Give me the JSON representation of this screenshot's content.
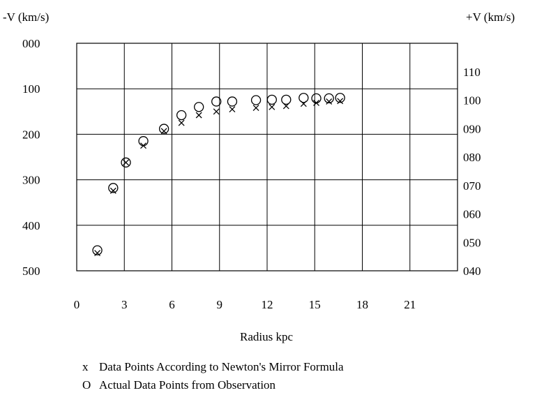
{
  "chart_data": {
    "type": "scatter",
    "left_axis_label": "-V   (km/s)",
    "right_axis_label": "+V (km/s)",
    "xlabel": "Radius  kpc",
    "x_ticks": [
      "0",
      "3",
      "6",
      "9",
      "12",
      "15",
      "18",
      "21"
    ],
    "left_ticks": [
      "000",
      "100",
      "200",
      "300",
      "400",
      "500"
    ],
    "right_ticks": [
      "110",
      "100",
      "090",
      "080",
      "070",
      "060",
      "050",
      "040"
    ],
    "xlim": [
      0,
      24
    ],
    "left_ylim": [
      0,
      500
    ],
    "right_ylim": [
      120,
      40
    ],
    "grid": true,
    "series": [
      {
        "name": "Data Points According to Newton's Mirror Formula",
        "marker": "x",
        "axis": "left",
        "points": [
          [
            1.3,
            461
          ],
          [
            2.3,
            324
          ],
          [
            3.1,
            262
          ],
          [
            4.2,
            225
          ],
          [
            5.5,
            193
          ],
          [
            6.6,
            175
          ],
          [
            7.7,
            158
          ],
          [
            8.8,
            150
          ],
          [
            9.8,
            145
          ],
          [
            11.3,
            142
          ],
          [
            12.3,
            140
          ],
          [
            13.2,
            138
          ],
          [
            14.3,
            133
          ],
          [
            15.1,
            131
          ],
          [
            15.9,
            128
          ],
          [
            16.6,
            127
          ]
        ]
      },
      {
        "name": "Actual Data Points from Observation",
        "marker": "o",
        "axis": "left",
        "points": [
          [
            1.3,
            455
          ],
          [
            2.3,
            318
          ],
          [
            3.1,
            262
          ],
          [
            4.2,
            215
          ],
          [
            5.5,
            188
          ],
          [
            6.6,
            158
          ],
          [
            7.7,
            140
          ],
          [
            8.8,
            128
          ],
          [
            9.8,
            128
          ],
          [
            11.3,
            125
          ],
          [
            12.3,
            124
          ],
          [
            13.2,
            124
          ],
          [
            14.3,
            120
          ],
          [
            15.1,
            121
          ],
          [
            15.9,
            121
          ],
          [
            16.6,
            120
          ]
        ]
      }
    ]
  },
  "legend": {
    "x_symbol": "x",
    "x_text": "Data Points According to Newton's Mirror Formula",
    "o_symbol": "O",
    "o_text": "Actual Data Points from Observation"
  }
}
